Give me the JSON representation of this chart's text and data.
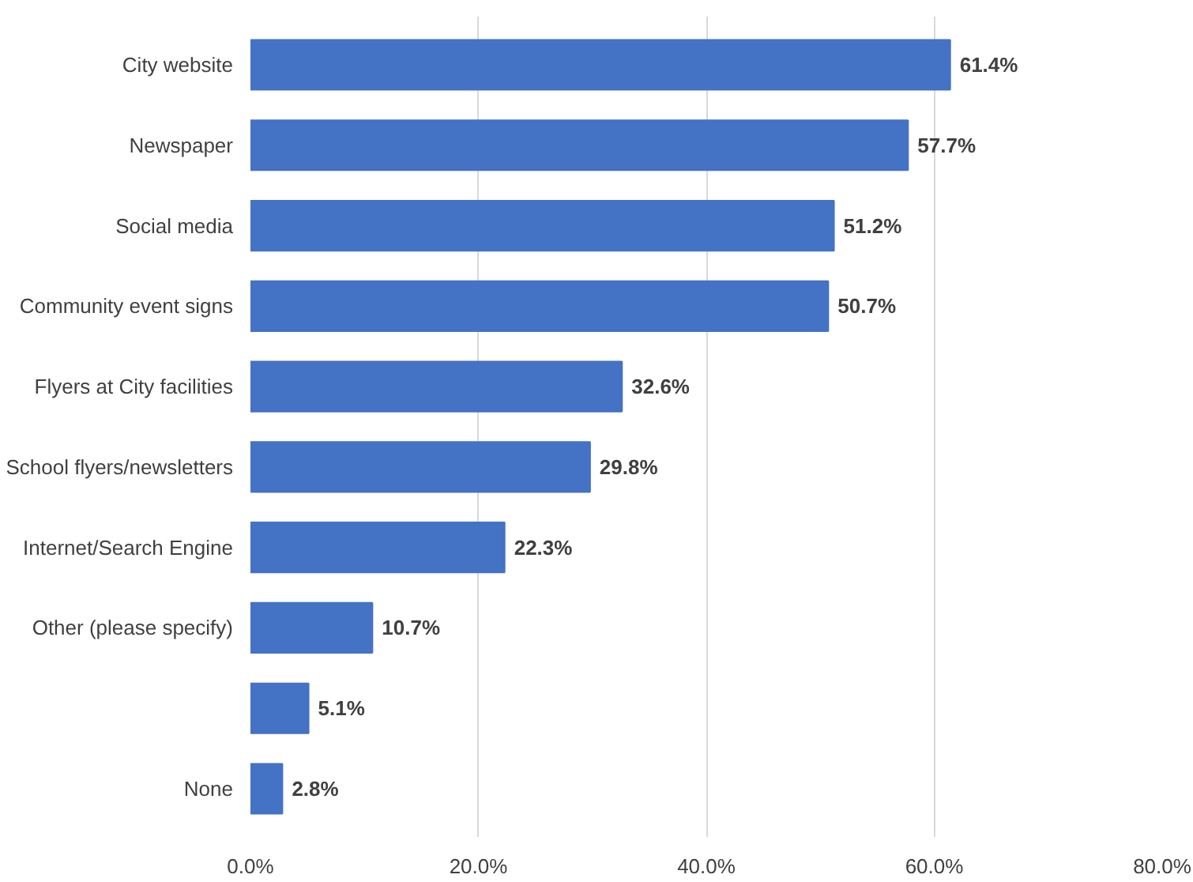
{
  "chart_data": {
    "type": "bar",
    "orientation": "horizontal",
    "categories": [
      "City website",
      "Newspaper",
      "Social media",
      "Community event signs",
      "Flyers at City facilities",
      "School flyers/newsletters",
      "Internet/Search Engine",
      "Other (please specify)",
      null,
      "None"
    ],
    "values": [
      61.4,
      57.7,
      51.2,
      50.7,
      32.6,
      29.8,
      22.3,
      10.7,
      5.1,
      2.8
    ],
    "value_labels": [
      "61.4%",
      "57.7%",
      "51.2%",
      "50.7%",
      "32.6%",
      "29.8%",
      "22.3%",
      "10.7%",
      "5.1%",
      "2.8%"
    ],
    "color": "#4472c4",
    "xlim": [
      0,
      80
    ],
    "xticks": [
      {
        "value": 0,
        "label": "0.0%"
      },
      {
        "value": 20,
        "label": "20.0%"
      },
      {
        "value": 40,
        "label": "40.0%"
      },
      {
        "value": 60,
        "label": "60.0%"
      },
      {
        "value": 80,
        "label": "80.0%"
      }
    ],
    "grid": "x"
  }
}
